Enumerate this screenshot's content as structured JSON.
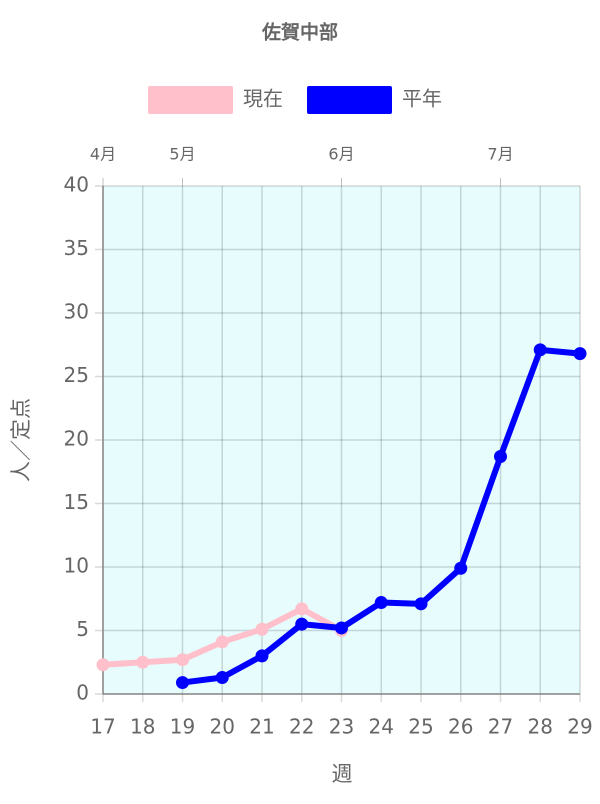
{
  "chart_data": {
    "type": "line",
    "title": "佐賀中部",
    "x": [
      17,
      18,
      19,
      20,
      21,
      22,
      23,
      24,
      25,
      26,
      27,
      28,
      29
    ],
    "series": [
      {
        "name": "現在",
        "color": "#ffc0cb",
        "values": [
          2.3,
          2.5,
          2.7,
          4.1,
          5.1,
          6.7,
          5.0,
          null,
          null,
          null,
          null,
          null,
          null
        ]
      },
      {
        "name": "平年",
        "color": "#0000ff",
        "values": [
          null,
          null,
          0.9,
          1.3,
          3.0,
          5.5,
          5.2,
          7.2,
          7.1,
          9.9,
          18.7,
          27.1,
          26.8
        ]
      }
    ],
    "xlim": [
      17,
      29
    ],
    "xticks": [
      17,
      18,
      19,
      20,
      21,
      22,
      23,
      24,
      25,
      26,
      27,
      28,
      29
    ],
    "x2ticks": [
      {
        "value": 17,
        "label": "4月"
      },
      {
        "value": 19,
        "label": "5月"
      },
      {
        "value": 23,
        "label": "6月"
      },
      {
        "value": 27,
        "label": "7月"
      }
    ],
    "ylim": [
      0,
      40
    ],
    "yticks": [
      0,
      5,
      10,
      15,
      20,
      25,
      30,
      35,
      40
    ],
    "xlabel": "週",
    "ylabel": "人／定点",
    "grid": true,
    "legend": "top",
    "plot_background": "#e6fcfd"
  }
}
